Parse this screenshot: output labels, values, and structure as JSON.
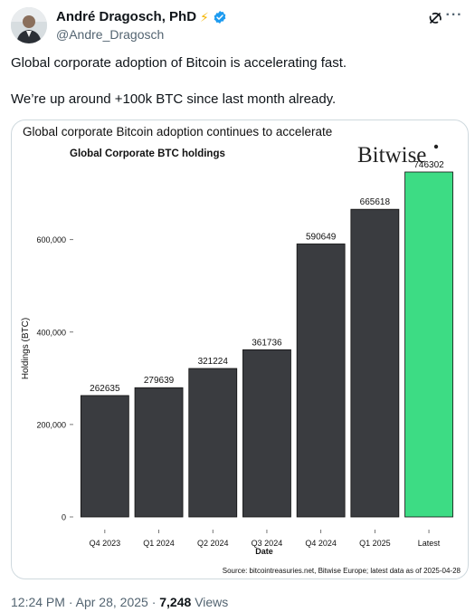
{
  "author": {
    "display_name": "André Dragosch, PhD",
    "badge_emoji": "⚡",
    "handle": "@Andre_Dragosch"
  },
  "tweet": {
    "line1": "Global corporate adoption of Bitcoin is accelerating fast.",
    "line2": "We’re up around +100k BTC since last month already."
  },
  "meta": {
    "time": "12:24 PM",
    "date": "Apr 28, 2025",
    "sep": "·",
    "views": "7,248",
    "views_label": "Views"
  },
  "colors": {
    "bar": "#3a3c40",
    "highlight": "#3ddc84",
    "verified": "#1d9bf0"
  },
  "chart_data": {
    "type": "bar",
    "title": "Global corporate Bitcoin adoption continues to accelerate",
    "subtitle": "Global Corporate BTC holdings",
    "brand": "Bitwise",
    "xlabel": "Date",
    "ylabel": "Holdings (BTC)",
    "ylim": [
      0,
      760000
    ],
    "yticks": [
      0,
      200000,
      400000,
      600000
    ],
    "ytick_labels": [
      "0",
      "200,000",
      "400,000",
      "600,000"
    ],
    "categories": [
      "Q4 2023",
      "Q1 2024",
      "Q2 2024",
      "Q3 2024",
      "Q4 2024",
      "Q1 2025",
      "Latest"
    ],
    "values": [
      262635,
      279639,
      321224,
      361736,
      590649,
      665618,
      746302
    ],
    "highlight_index": 6,
    "source": "Source: bitcointreasuries.net, Bitwise Europe; latest data as of 2025-04-28",
    "grid": false
  }
}
